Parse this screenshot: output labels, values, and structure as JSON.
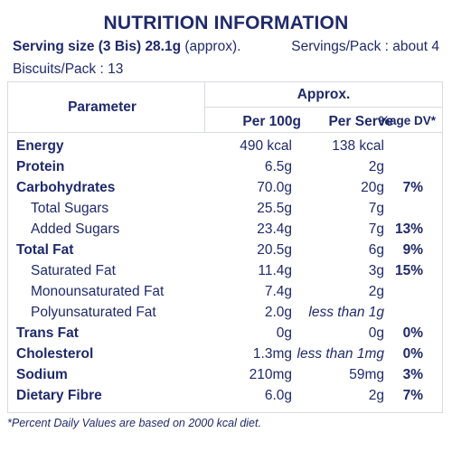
{
  "title": "NUTRITION INFORMATION",
  "serving": {
    "size_label": "Serving size (3 Bis) 28.1g",
    "size_suffix": "(approx).",
    "servings_per_pack": "Servings/Pack : about 4",
    "biscuits_per_pack": "Biscuits/Pack : 13"
  },
  "table": {
    "headers": {
      "parameter": "Parameter",
      "approx": "Approx.",
      "per100": "Per 100g",
      "perserve": "Per Serve",
      "dv": "%age DV*"
    },
    "rows": [
      {
        "name": "Energy",
        "bold": true,
        "indent": false,
        "per100": "490 kcal",
        "perserve": "138 kcal",
        "dv": ""
      },
      {
        "name": "Protein",
        "bold": true,
        "indent": false,
        "per100": "6.5g",
        "perserve": "2g",
        "dv": ""
      },
      {
        "name": "Carbohydrates",
        "bold": true,
        "indent": false,
        "per100": "70.0g",
        "perserve": "20g",
        "dv": "7%"
      },
      {
        "name": "Total Sugars",
        "bold": false,
        "indent": true,
        "per100": "25.5g",
        "perserve": "7g",
        "dv": ""
      },
      {
        "name": "Added Sugars",
        "bold": false,
        "indent": true,
        "per100": "23.4g",
        "perserve": "7g",
        "dv": "13%"
      },
      {
        "name": "Total Fat",
        "bold": true,
        "indent": false,
        "per100": "20.5g",
        "perserve": "6g",
        "dv": "9%"
      },
      {
        "name": "Saturated Fat",
        "bold": false,
        "indent": true,
        "per100": "11.4g",
        "perserve": "3g",
        "dv": "15%"
      },
      {
        "name": "Monounsaturated Fat",
        "bold": false,
        "indent": true,
        "per100": "7.4g",
        "perserve": "2g",
        "dv": ""
      },
      {
        "name": "Polyunsaturated Fat",
        "bold": false,
        "indent": true,
        "per100": "2.0g",
        "perserve": "less than 1g",
        "dv": "",
        "italic": true
      },
      {
        "name": "Trans Fat",
        "bold": true,
        "indent": false,
        "per100": "0g",
        "perserve": "0g",
        "dv": "0%"
      },
      {
        "name": "Cholesterol",
        "bold": true,
        "indent": false,
        "per100": "1.3mg",
        "perserve": "less than 1mg",
        "dv": "0%",
        "italic": true
      },
      {
        "name": "Sodium",
        "bold": true,
        "indent": false,
        "per100": "210mg",
        "perserve": "59mg",
        "dv": "3%"
      },
      {
        "name": "Dietary Fibre",
        "bold": true,
        "indent": false,
        "per100": "6.0g",
        "perserve": "2g",
        "dv": "7%"
      }
    ]
  },
  "footnote": "*Percent Daily Values are based on 2000 kcal diet."
}
